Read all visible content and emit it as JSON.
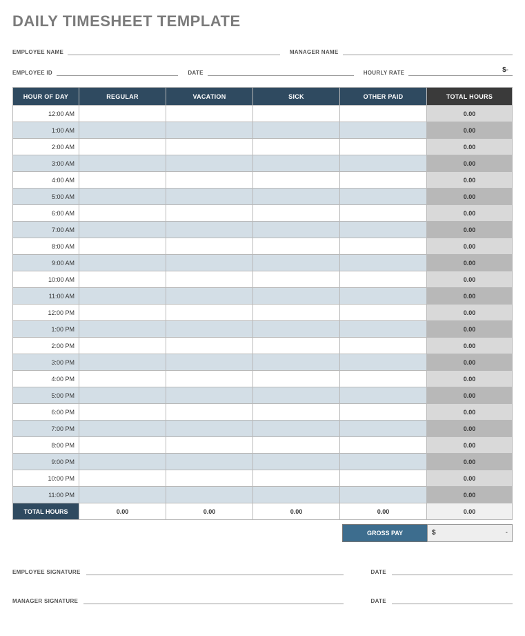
{
  "title": "DAILY TIMESHEET TEMPLATE",
  "meta": {
    "row1": {
      "employee_name_label": "EMPLOYEE NAME",
      "employee_name_value": "",
      "manager_name_label": "MANAGER NAME",
      "manager_name_value": ""
    },
    "row2": {
      "employee_id_label": "EMPLOYEE ID",
      "employee_id_value": "",
      "date_label": "DATE",
      "date_value": "",
      "hourly_rate_label": "HOURLY RATE",
      "hourly_rate_value": ""
    }
  },
  "table": {
    "headers": {
      "hour": "HOUR OF DAY",
      "regular": "REGULAR",
      "vacation": "VACATION",
      "sick": "SICK",
      "other": "OTHER PAID",
      "total": "TOTAL HOURS"
    },
    "rows": [
      {
        "hour": "12:00 AM",
        "regular": "",
        "vacation": "",
        "sick": "",
        "other": "",
        "total": "0.00",
        "shade": "white"
      },
      {
        "hour": "1:00 AM",
        "regular": "",
        "vacation": "",
        "sick": "",
        "other": "",
        "total": "0.00",
        "shade": "blue"
      },
      {
        "hour": "2:00 AM",
        "regular": "",
        "vacation": "",
        "sick": "",
        "other": "",
        "total": "0.00",
        "shade": "white"
      },
      {
        "hour": "3:00 AM",
        "regular": "",
        "vacation": "",
        "sick": "",
        "other": "",
        "total": "0.00",
        "shade": "blue"
      },
      {
        "hour": "4:00 AM",
        "regular": "",
        "vacation": "",
        "sick": "",
        "other": "",
        "total": "0.00",
        "shade": "white"
      },
      {
        "hour": "5:00 AM",
        "regular": "",
        "vacation": "",
        "sick": "",
        "other": "",
        "total": "0.00",
        "shade": "blue"
      },
      {
        "hour": "6:00 AM",
        "regular": "",
        "vacation": "",
        "sick": "",
        "other": "",
        "total": "0.00",
        "shade": "white"
      },
      {
        "hour": "7:00 AM",
        "regular": "",
        "vacation": "",
        "sick": "",
        "other": "",
        "total": "0.00",
        "shade": "blue"
      },
      {
        "hour": "8:00 AM",
        "regular": "",
        "vacation": "",
        "sick": "",
        "other": "",
        "total": "0.00",
        "shade": "white"
      },
      {
        "hour": "9:00 AM",
        "regular": "",
        "vacation": "",
        "sick": "",
        "other": "",
        "total": "0.00",
        "shade": "blue"
      },
      {
        "hour": "10:00 AM",
        "regular": "",
        "vacation": "",
        "sick": "",
        "other": "",
        "total": "0.00",
        "shade": "white"
      },
      {
        "hour": "11:00 AM",
        "regular": "",
        "vacation": "",
        "sick": "",
        "other": "",
        "total": "0.00",
        "shade": "blue"
      },
      {
        "hour": "12:00 PM",
        "regular": "",
        "vacation": "",
        "sick": "",
        "other": "",
        "total": "0.00",
        "shade": "white"
      },
      {
        "hour": "1:00 PM",
        "regular": "",
        "vacation": "",
        "sick": "",
        "other": "",
        "total": "0.00",
        "shade": "blue"
      },
      {
        "hour": "2:00 PM",
        "regular": "",
        "vacation": "",
        "sick": "",
        "other": "",
        "total": "0.00",
        "shade": "white"
      },
      {
        "hour": "3:00 PM",
        "regular": "",
        "vacation": "",
        "sick": "",
        "other": "",
        "total": "0.00",
        "shade": "blue"
      },
      {
        "hour": "4:00 PM",
        "regular": "",
        "vacation": "",
        "sick": "",
        "other": "",
        "total": "0.00",
        "shade": "white"
      },
      {
        "hour": "5:00 PM",
        "regular": "",
        "vacation": "",
        "sick": "",
        "other": "",
        "total": "0.00",
        "shade": "blue"
      },
      {
        "hour": "6:00 PM",
        "regular": "",
        "vacation": "",
        "sick": "",
        "other": "",
        "total": "0.00",
        "shade": "white"
      },
      {
        "hour": "7:00 PM",
        "regular": "",
        "vacation": "",
        "sick": "",
        "other": "",
        "total": "0.00",
        "shade": "blue"
      },
      {
        "hour": "8:00 PM",
        "regular": "",
        "vacation": "",
        "sick": "",
        "other": "",
        "total": "0.00",
        "shade": "white"
      },
      {
        "hour": "9:00 PM",
        "regular": "",
        "vacation": "",
        "sick": "",
        "other": "",
        "total": "0.00",
        "shade": "blue"
      },
      {
        "hour": "10:00 PM",
        "regular": "",
        "vacation": "",
        "sick": "",
        "other": "",
        "total": "0.00",
        "shade": "white"
      },
      {
        "hour": "11:00 PM",
        "regular": "",
        "vacation": "",
        "sick": "",
        "other": "",
        "total": "0.00",
        "shade": "blue"
      }
    ],
    "footer": {
      "label": "TOTAL HOURS",
      "regular": "0.00",
      "vacation": "0.00",
      "sick": "0.00",
      "other": "0.00",
      "total": "0.00"
    }
  },
  "gross": {
    "label": "GROSS PAY",
    "currency": "$",
    "value": "-"
  },
  "signatures": {
    "emp_sig_label": "EMPLOYEE SIGNATURE",
    "emp_date_label": "DATE",
    "mgr_sig_label": "MANAGER SIGNATURE",
    "mgr_date_label": "DATE"
  },
  "style": {
    "header_bg": "#2f4a60",
    "header_total_bg": "#3a3a3a",
    "row_blue_bg": "#d3dee6",
    "row_white_bg": "#ffffff",
    "total_col_light": "#d9d9d9",
    "total_col_dark": "#b8b8b8",
    "gross_label_bg": "#3d6d8e",
    "title_color": "#7b7b7b",
    "border_color": "#b8b8b8"
  }
}
